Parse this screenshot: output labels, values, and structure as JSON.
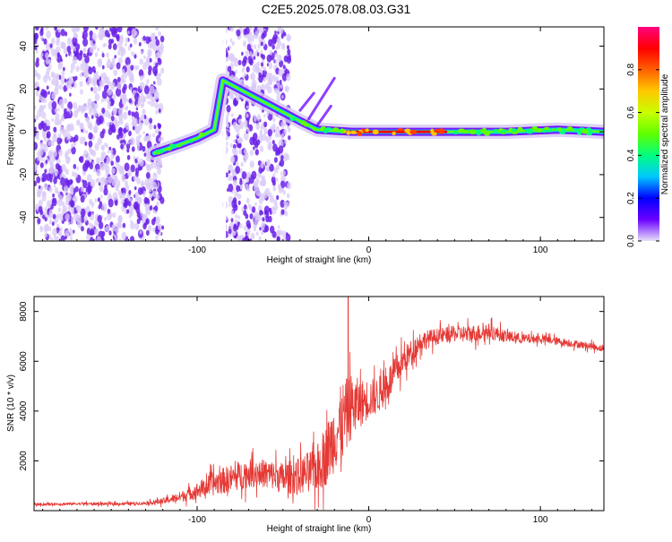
{
  "title": "C2E5.2025.078.08.03.G31",
  "colors": {
    "snr_line": "#e53935",
    "axes": "#000000",
    "scatter_purple": "#6b21e8",
    "scatter_light": "#d9c9f7",
    "colorbar_stops": [
      "#e8e0f8",
      "#6b00ff",
      "#0000ff",
      "#00c8ff",
      "#00ff80",
      "#60ff00",
      "#c8ff00",
      "#ffc800",
      "#ff6000",
      "#ff0000",
      "#ff0080"
    ]
  },
  "chart_data": [
    {
      "type": "heatmap",
      "xlabel": "Height of straight line (km)",
      "ylabel": "Frequency (Hz)",
      "xlim": [
        -195,
        137
      ],
      "ylim": [
        -51,
        49
      ],
      "x_ticks": [
        -100,
        0,
        100
      ],
      "x_tick_labels": [
        "-100",
        "0",
        "100"
      ],
      "y_ticks": [
        -40,
        -20,
        0,
        20,
        40
      ],
      "y_tick_labels": [
        "-40",
        "-20",
        "0",
        "20",
        "40"
      ],
      "colorbar": {
        "label": "Normalized spectral amplitude",
        "range": [
          0,
          1
        ],
        "ticks": [
          0.0,
          0.2,
          0.4,
          0.6,
          0.8
        ],
        "tick_labels": [
          "0.0",
          "0.2",
          "0.4",
          "0.6",
          "0.8"
        ]
      },
      "noise_bands_x": [
        [
          -195,
          -120
        ],
        [
          -84,
          -46
        ]
      ],
      "signal_track": [
        {
          "x": -125,
          "y": -10
        },
        {
          "x": -110,
          "y": -6
        },
        {
          "x": -100,
          "y": -3
        },
        {
          "x": -90,
          "y": 1
        },
        {
          "x": -85,
          "y": 24
        },
        {
          "x": -40,
          "y": 5
        },
        {
          "x": -30,
          "y": 1
        },
        {
          "x": -10,
          "y": 0
        },
        {
          "x": 0,
          "y": 0
        },
        {
          "x": 20,
          "y": 0
        },
        {
          "x": 50,
          "y": 0
        },
        {
          "x": 80,
          "y": 0
        },
        {
          "x": 110,
          "y": 1
        },
        {
          "x": 137,
          "y": 0
        }
      ]
    },
    {
      "type": "line",
      "xlabel": "Height of straight line (km)",
      "ylabel": "SNR (10 * v/v)",
      "xlim": [
        -195,
        137
      ],
      "ylim": [
        0,
        8600
      ],
      "x_ticks": [
        -100,
        0,
        100
      ],
      "x_tick_labels": [
        "-100",
        "0",
        "100"
      ],
      "y_ticks": [
        2000,
        4000,
        6000,
        8000
      ],
      "y_tick_labels": [
        "2000",
        "4000",
        "6000",
        "8000"
      ],
      "series": [
        {
          "x": [
            -195,
            -170,
            -150,
            -130,
            -120,
            -110,
            -100,
            -90,
            -80,
            -70,
            -60,
            -50,
            -40,
            -30,
            -25,
            -20,
            -15,
            -10,
            -5,
            0,
            5,
            10,
            20,
            30,
            40,
            50,
            60,
            70,
            80,
            90,
            100,
            110,
            120,
            130,
            137
          ],
          "y": [
            250,
            280,
            270,
            300,
            380,
            550,
            800,
            1100,
            1300,
            1500,
            1500,
            1300,
            1400,
            1700,
            2200,
            3000,
            3600,
            4200,
            4300,
            4500,
            4600,
            5000,
            6000,
            6800,
            7000,
            7100,
            7100,
            7200,
            7000,
            6900,
            6900,
            6800,
            6700,
            6600,
            6500
          ],
          "spread": [
            60,
            70,
            70,
            80,
            150,
            250,
            400,
            600,
            700,
            700,
            700,
            800,
            900,
            1200,
            1500,
            1800,
            2000,
            1600,
            1200,
            1000,
            900,
            900,
            700,
            500,
            400,
            400,
            450,
            400,
            300,
            250,
            200,
            200,
            180,
            170,
            160
          ]
        }
      ]
    }
  ]
}
